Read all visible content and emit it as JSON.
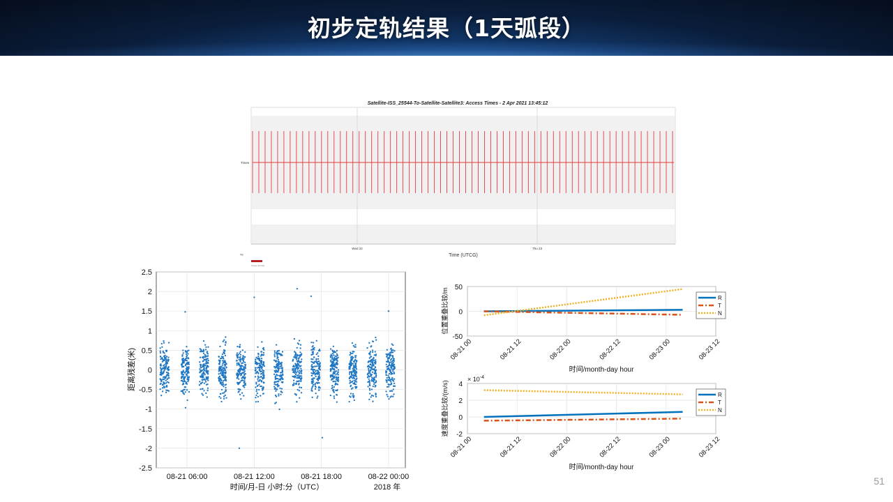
{
  "slide": {
    "title": "初步定轨结果（1天弧段）",
    "page_number": "51"
  },
  "colors": {
    "access_red": "#e8393b",
    "scatter_blue": "#1f77c4",
    "R": "#0072bd",
    "T": "#d95319",
    "N": "#edb120"
  },
  "chart_data": [
    {
      "type": "timeline",
      "title": "Satellite-ISS_25544-To-Satellite-Satellite3:  Access Times -  2 Apr 2021 13:45:12",
      "xlabel": "Time (UTCG)",
      "ylabel": "Times",
      "x_ticks": [
        "Wed 22",
        "Thu 23"
      ],
      "legend_label_top": "ug",
      "legend_label_bottom": "Times (UTCG)",
      "access_count": 68
    },
    {
      "type": "scatter",
      "ylabel": "距离残差(米)",
      "xlabel": "时间/月-日 小时:分（UTC）",
      "year_label": "2018 年",
      "ylim": [
        -2.5,
        2.5
      ],
      "y_ticks": [
        "2.5",
        "2",
        "1.5",
        "1",
        "0.5",
        "0",
        "-0.5",
        "-1",
        "-1.5",
        "-2",
        "-2.5"
      ],
      "x_ticks": [
        "08-21 06:00",
        "08-21 12:00",
        "08-21 18:00",
        "08-22 00:00"
      ],
      "passes": [
        {
          "center": "08-21 04:00",
          "width_h": 0.8
        },
        {
          "center": "08-21 05:50",
          "width_h": 0.7
        },
        {
          "center": "08-21 07:30",
          "width_h": 0.8
        },
        {
          "center": "08-21 09:10",
          "width_h": 0.7
        },
        {
          "center": "08-21 10:50",
          "width_h": 0.8
        },
        {
          "center": "08-21 12:30",
          "width_h": 0.8
        },
        {
          "center": "08-21 14:10",
          "width_h": 0.8
        },
        {
          "center": "08-21 15:50",
          "width_h": 0.8
        },
        {
          "center": "08-21 17:30",
          "width_h": 0.8
        },
        {
          "center": "08-21 19:10",
          "width_h": 0.7
        },
        {
          "center": "08-21 20:50",
          "width_h": 0.7
        },
        {
          "center": "08-21 22:30",
          "width_h": 0.8
        },
        {
          "center": "08-22 00:10",
          "width_h": 0.8
        }
      ],
      "noise_sigma": 0.42,
      "outliers": [
        {
          "t": "08-21 15:50",
          "y": 2.07
        },
        {
          "t": "08-21 12:00",
          "y": 1.85
        },
        {
          "t": "08-21 17:05",
          "y": 1.88
        },
        {
          "t": "08-21 10:40",
          "y": -2.0
        },
        {
          "t": "08-21 18:05",
          "y": -1.73
        },
        {
          "t": "08-21 05:50",
          "y": 1.48
        },
        {
          "t": "08-22 00:00",
          "y": 1.5
        }
      ]
    },
    {
      "type": "line",
      "ylabel": "位置重叠比较/m",
      "xlabel": "时间/month-day hour",
      "ylim": [
        -50,
        50
      ],
      "y_ticks": [
        "50",
        "0",
        "-50"
      ],
      "x_ticks": [
        "08-21 00",
        "08-21 12",
        "08-22 00",
        "08-22 12",
        "08-23 00",
        "08-23 12"
      ],
      "x_hours": [
        0,
        12,
        24,
        36,
        48,
        60
      ],
      "series": [
        {
          "name": "R",
          "style": "solid",
          "x": [
            4,
            52
          ],
          "y": [
            0,
            3
          ]
        },
        {
          "name": "T",
          "style": "dashdot",
          "x": [
            4,
            52
          ],
          "y": [
            0,
            -7
          ]
        },
        {
          "name": "N",
          "style": "dotted",
          "x": [
            4,
            52
          ],
          "y": [
            -8,
            45
          ]
        }
      ]
    },
    {
      "type": "line",
      "ylabel": "速度重叠比较/(m/s)",
      "xlabel": "时间/month-day hour",
      "exponent_label": "× 10",
      "exponent_power": "-4",
      "ylim": [
        -2,
        4
      ],
      "y_ticks": [
        "4",
        "2",
        "0",
        "-2"
      ],
      "x_ticks": [
        "08-21 00",
        "08-21 12",
        "08-22 00",
        "08-22 12",
        "08-23 00",
        "08-23 12"
      ],
      "x_hours": [
        0,
        12,
        24,
        36,
        48,
        60
      ],
      "series": [
        {
          "name": "R",
          "style": "solid",
          "x": [
            4,
            52
          ],
          "y": [
            0.0,
            0.6
          ]
        },
        {
          "name": "T",
          "style": "dashdot",
          "x": [
            4,
            52
          ],
          "y": [
            -0.45,
            -0.2
          ]
        },
        {
          "name": "N",
          "style": "dotted",
          "x": [
            4,
            52
          ],
          "y": [
            3.2,
            2.7
          ]
        }
      ]
    }
  ]
}
